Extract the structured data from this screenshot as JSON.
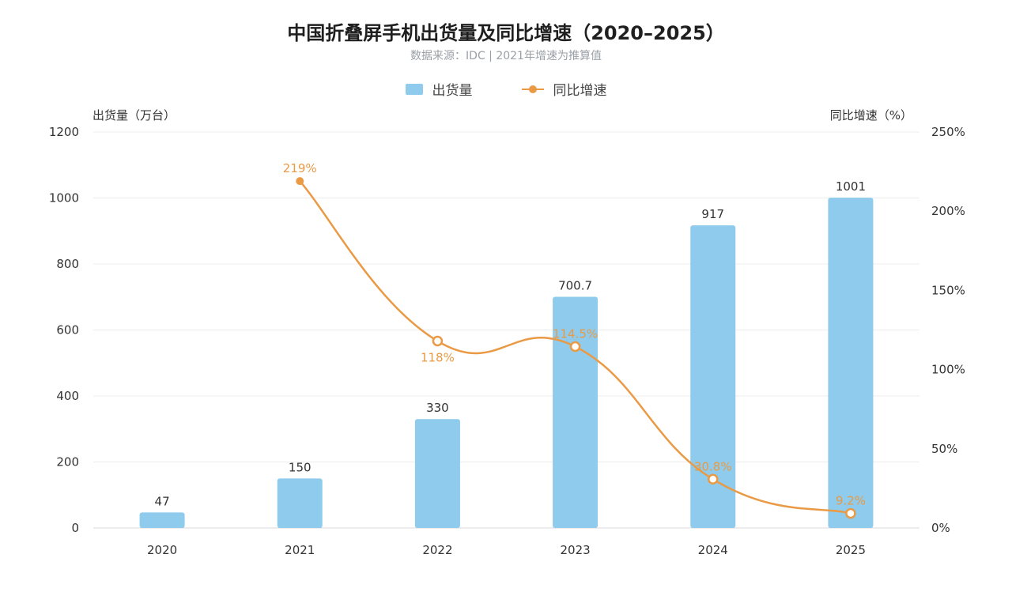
{
  "chart_data": {
    "type": "bar",
    "title": "中国折叠屏手机出货量及同比增速（2020–2025）",
    "subtitle": "数据来源：IDC | 2021年增速为推算值",
    "ylabel_left": "出货量（万台）",
    "ylabel_right": "同比增速（%）",
    "categories": [
      "2020",
      "2021",
      "2022",
      "2023",
      "2024",
      "2025"
    ],
    "series": [
      {
        "name": "出货量",
        "type": "bar",
        "axis": "left",
        "values": [
          47,
          150,
          330,
          700.7,
          917,
          1001
        ],
        "labels": [
          "47",
          "150",
          "330",
          "700.7",
          "917",
          "1001"
        ]
      },
      {
        "name": "同比增速",
        "type": "line",
        "axis": "right",
        "values": [
          null,
          219,
          118,
          114.5,
          30.8,
          9.2
        ],
        "labels": [
          "",
          "219%",
          "118%",
          "114.5%",
          "30.8%",
          "9.2%"
        ]
      }
    ],
    "ylim_left": [
      0,
      1200
    ],
    "yticks_left": [
      0,
      200,
      400,
      600,
      800,
      1000,
      1200
    ],
    "ylim_right": [
      0,
      250
    ],
    "yticks_right": [
      "0%",
      "50%",
      "100%",
      "150%",
      "200%",
      "250%"
    ],
    "grid": true,
    "legend_position": "top-center",
    "colors": {
      "bar": "#8ecbec",
      "line": "#ea9a45",
      "grid": "#ececec",
      "axis": "#d9d9d9"
    }
  }
}
